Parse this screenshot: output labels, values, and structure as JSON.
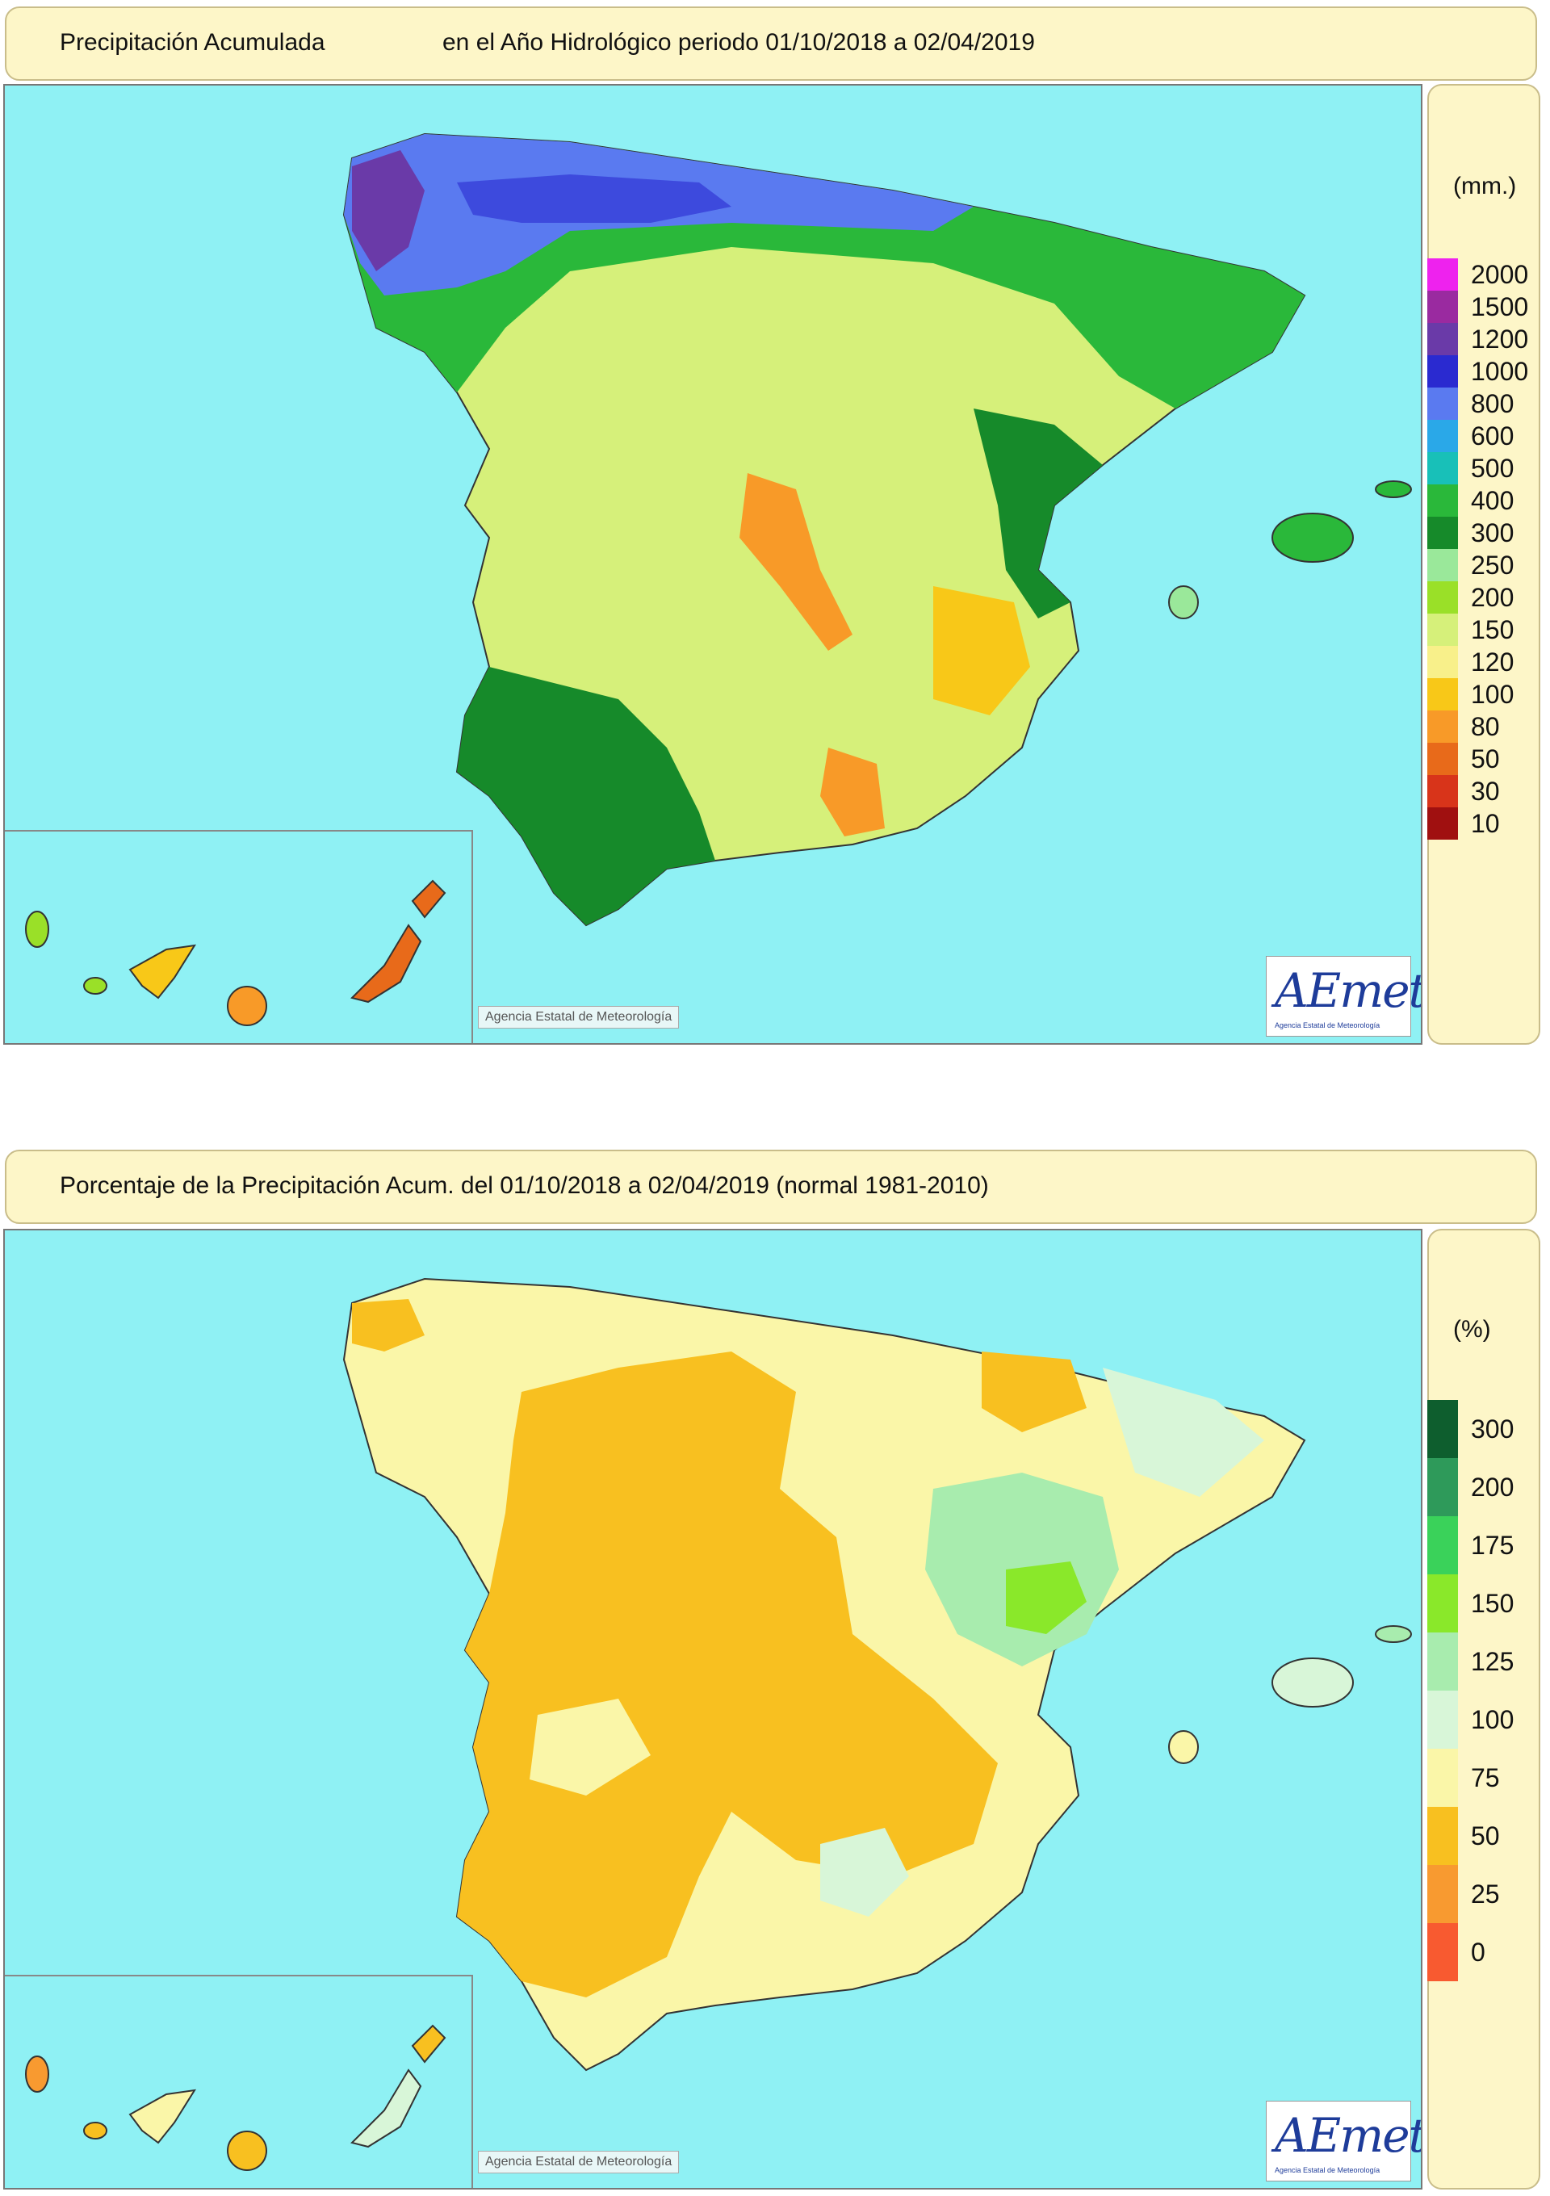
{
  "map1": {
    "title_left": "Precipitación Acumulada",
    "title_right": "en el Año Hidrológico  periodo 01/10/2018 a 02/04/2019",
    "unit": "(mm.)",
    "legend": [
      {
        "label": "2000",
        "color": "#ee22ee"
      },
      {
        "label": "1500",
        "color": "#9a2aa0"
      },
      {
        "label": "1200",
        "color": "#6a3aa8"
      },
      {
        "label": "1000",
        "color": "#2a2ad0"
      },
      {
        "label": "800",
        "color": "#5a7af0"
      },
      {
        "label": "600",
        "color": "#2aa8e8"
      },
      {
        "label": "500",
        "color": "#18c0b8"
      },
      {
        "label": "400",
        "color": "#2ab83a"
      },
      {
        "label": "300",
        "color": "#168a2a"
      },
      {
        "label": "250",
        "color": "#9ae89a"
      },
      {
        "label": "200",
        "color": "#9ae028"
      },
      {
        "label": "150",
        "color": "#d6f07a"
      },
      {
        "label": "120",
        "color": "#f8f08a"
      },
      {
        "label": "100",
        "color": "#f8c818"
      },
      {
        "label": "80",
        "color": "#f89a28"
      },
      {
        "label": "50",
        "color": "#e86a1a"
      },
      {
        "label": "30",
        "color": "#d8341a"
      },
      {
        "label": "10",
        "color": "#a01010"
      }
    ],
    "copyright": "Agencia Estatal de Meteorología",
    "logo_text": "AEmet",
    "logo_sub": "Agencia Estatal de Meteorología"
  },
  "map2": {
    "title_left": "Porcentaje de la Precipitación Acum. del 01/10/2018 a  02/04/2019  (normal 1981-2010)",
    "unit": "(%)",
    "legend": [
      {
        "label": "300",
        "color": "#0e5e2e"
      },
      {
        "label": "200",
        "color": "#2e9a5a"
      },
      {
        "label": "175",
        "color": "#3ad25a"
      },
      {
        "label": "150",
        "color": "#8ae82a"
      },
      {
        "label": "125",
        "color": "#a8ecae"
      },
      {
        "label": "100",
        "color": "#d8f6d8"
      },
      {
        "label": "75",
        "color": "#faf6a8"
      },
      {
        "label": "50",
        "color": "#f8c020"
      },
      {
        "label": "25",
        "color": "#f89a30"
      },
      {
        "label": "0",
        "color": "#f85a30"
      }
    ],
    "copyright": "Agencia Estatal de Meteorología",
    "logo_text": "AEmet",
    "logo_sub": "Agencia Estatal de Meteorología"
  }
}
